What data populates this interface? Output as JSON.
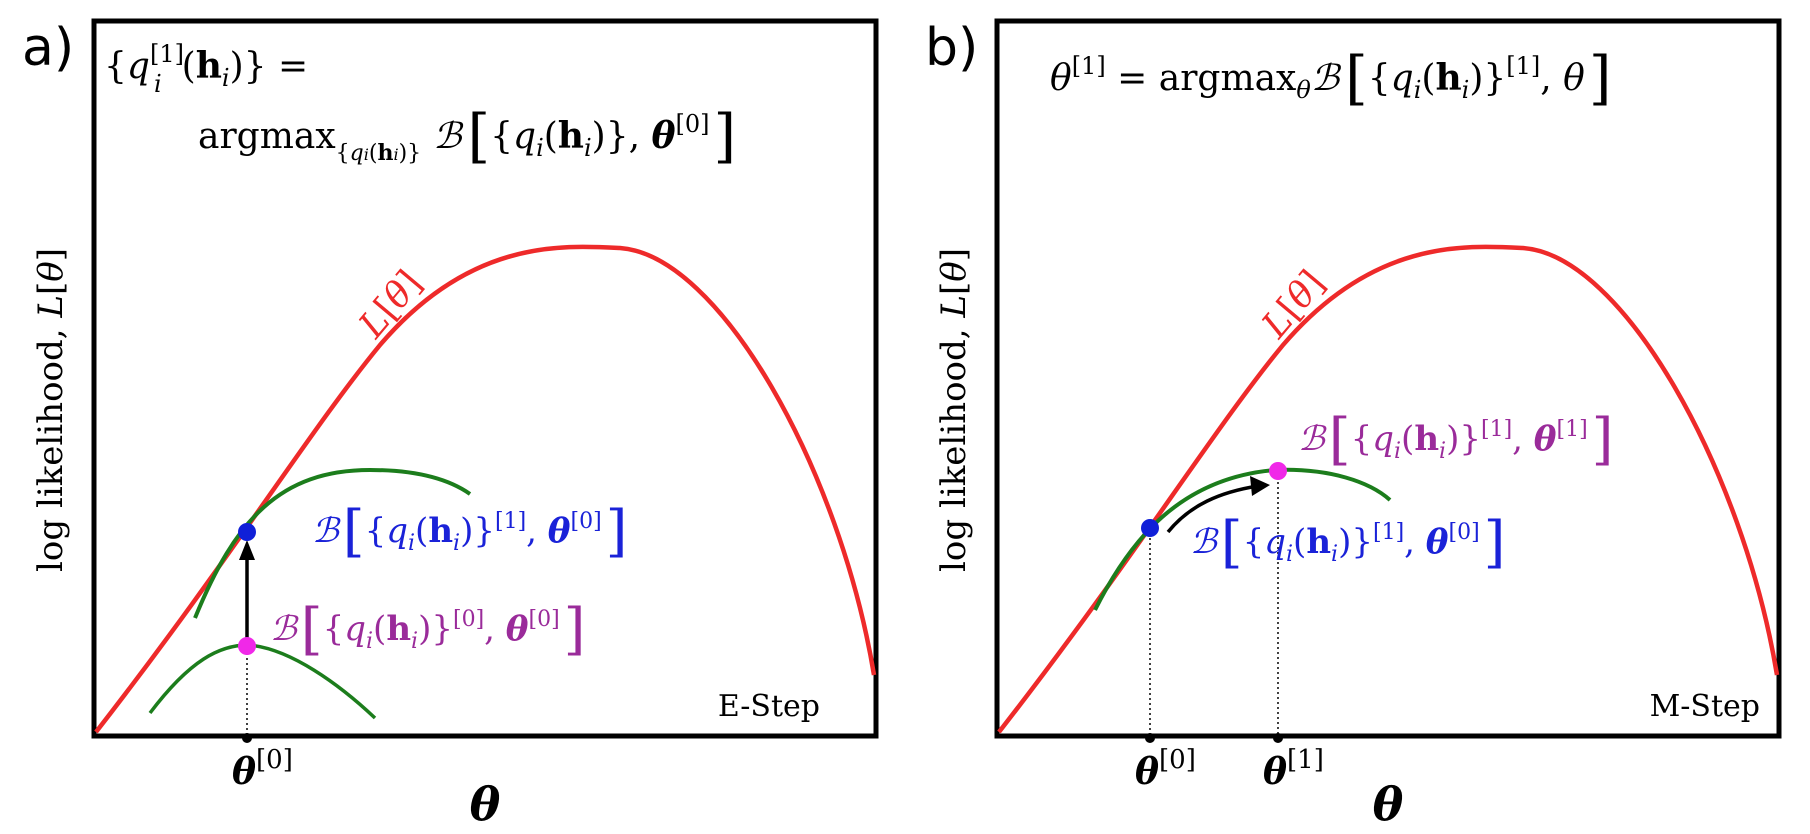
{
  "colors": {
    "likelihood": "#ee2a2a",
    "bound": "#1c7d1c",
    "current_bound": "#1a22d8",
    "old_bound": "#9a2b9a",
    "dot_blue": "#1020d8",
    "dot_magenta": "#f028e8"
  },
  "panels": [
    {
      "letter": "a)",
      "equation_line1": "{qᵢ^[1](hᵢ)} =",
      "equation_line2": "argmax{qᵢ(hᵢ)} ℬ[{qᵢ(hᵢ)}, θ^[0]]",
      "ylabel": "log likelihood, L[θ]",
      "xlabel": "θ",
      "curve_label": "L[θ]",
      "bound_new_label": "ℬ[{qᵢ(hᵢ)}^[1], θ^[0]]",
      "bound_old_label": "ℬ[{qᵢ(hᵢ)}^[0], θ^[0]]",
      "theta_ticks": [
        "θ^[0]"
      ],
      "step_label": "E-Step"
    },
    {
      "letter": "b)",
      "equation_line1": "θ^[1] = argmaxθ ℬ[{qᵢ(hᵢ)}^[1], θ]",
      "ylabel": "log likelihood, L[θ]",
      "xlabel": "θ",
      "curve_label": "L[θ]",
      "bound_new_label": "ℬ[{qᵢ(hᵢ)}^[1], θ^[1]]",
      "bound_old_label": "ℬ[{qᵢ(hᵢ)}^[1], θ^[0]]",
      "theta_ticks": [
        "θ^[0]",
        "θ^[1]"
      ],
      "step_label": "M-Step"
    }
  ]
}
